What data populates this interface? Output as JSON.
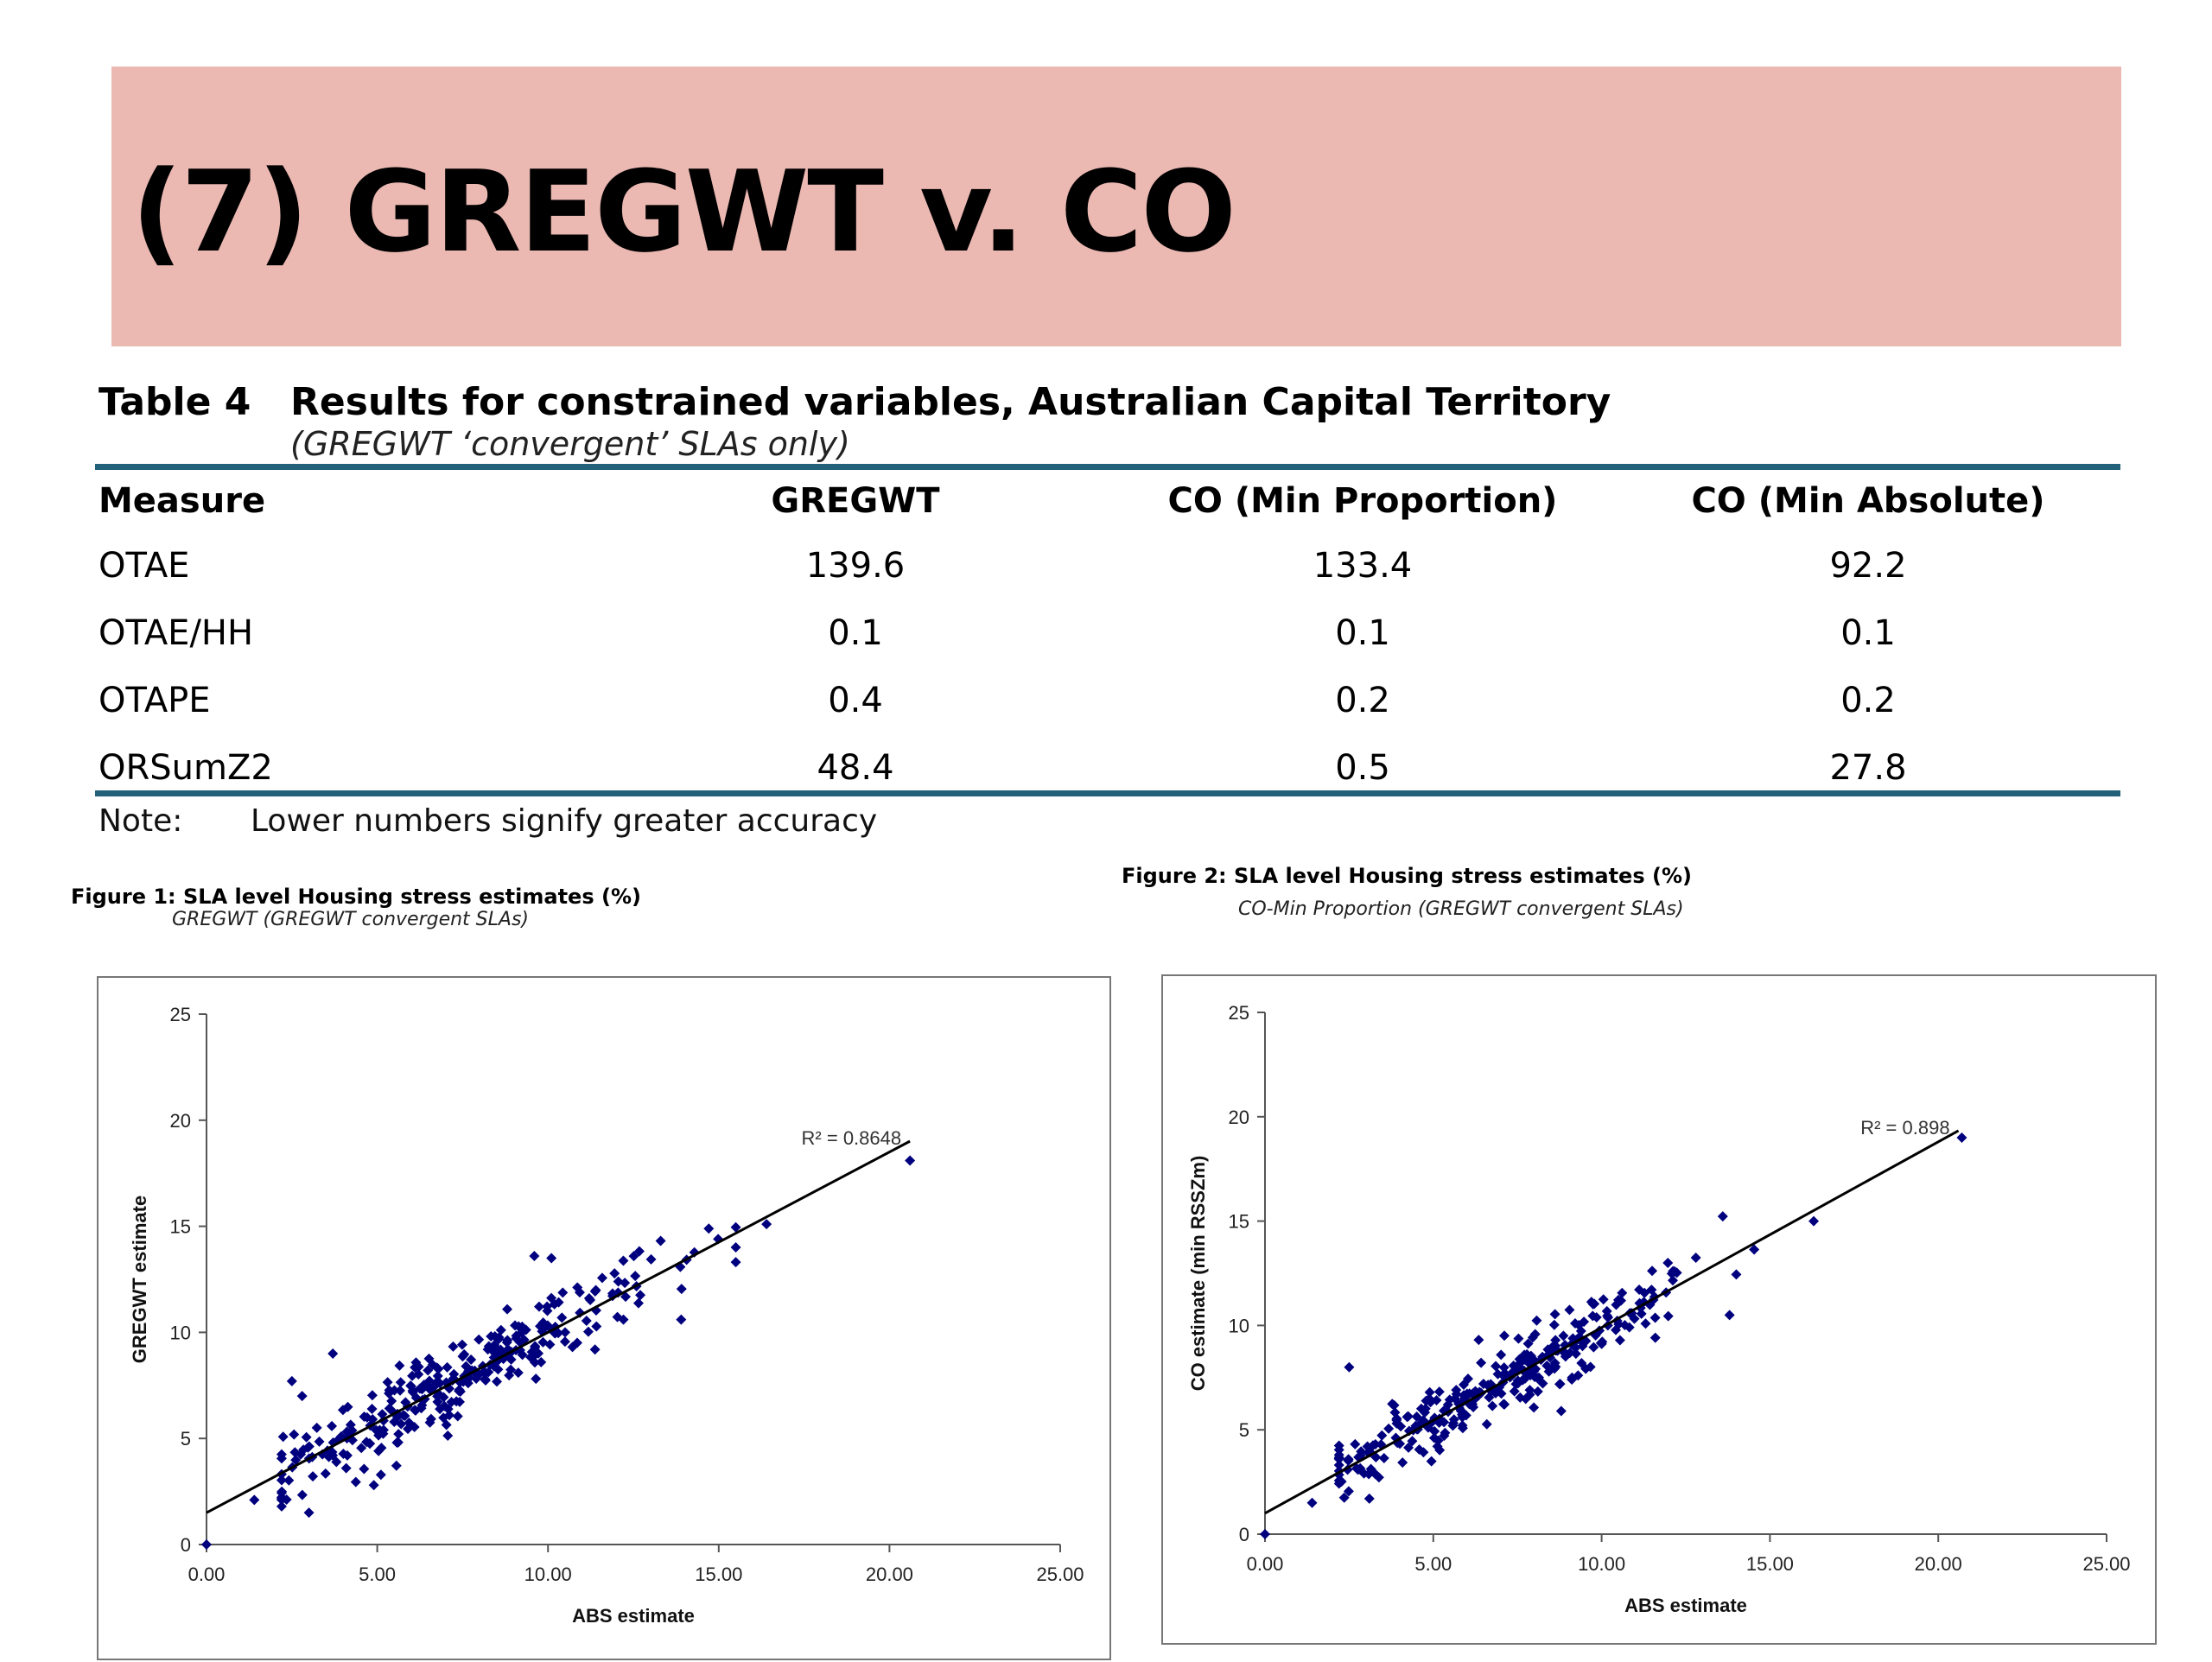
{
  "slide": {
    "title": "(7) GREGWT v. CO"
  },
  "table": {
    "number": "Table 4",
    "caption": "Results for constrained variables, Australian Capital Territory",
    "subcaption": "(GREGWT ‘convergent’ SLAs only)",
    "headers": [
      "Measure",
      "GREGWT",
      "CO (Min Proportion)",
      "CO (Min Absolute)"
    ],
    "rows": [
      [
        "OTAE",
        "139.6",
        "133.4",
        "92.2"
      ],
      [
        "OTAE/HH",
        "0.1",
        "0.1",
        "0.1"
      ],
      [
        "OTAPE",
        "0.4",
        "0.2",
        "0.2"
      ],
      [
        "ORSumZ2",
        "48.4",
        "0.5",
        "27.8"
      ]
    ],
    "note_label": "Note:",
    "note_text": "Lower numbers signify greater accuracy"
  },
  "colors": {
    "title_band": "#ebb8b2",
    "table_rule": "#23607a",
    "marker": "#00007f"
  },
  "chart_data": [
    {
      "type": "scatter",
      "title": "Figure 1: SLA level Housing stress estimates (%)",
      "subtitle": "GREGWT (GREGWT convergent SLAs)",
      "xlabel": "ABS estimate",
      "ylabel": "GREGWT estimate",
      "xlim": [
        0,
        25
      ],
      "ylim": [
        0,
        25
      ],
      "xticks": [
        "0.00",
        "5.00",
        "10.00",
        "15.00",
        "20.00",
        "25.00"
      ],
      "yticks": [
        "0",
        "5",
        "10",
        "15",
        "20",
        "25"
      ],
      "grid": false,
      "trendline": {
        "intercept": 1.5,
        "slope": 0.85,
        "x_range": [
          0,
          20.6
        ],
        "label": "R² = 0.8648"
      },
      "generator": {
        "n": 300,
        "seed": 7,
        "scatter_sd": 0.9
      },
      "points": [
        [
          0,
          0
        ],
        [
          1.4,
          2.1
        ],
        [
          2.5,
          7.7
        ],
        [
          2.8,
          7.0
        ],
        [
          3.7,
          9.0
        ],
        [
          3.0,
          1.5
        ],
        [
          13.9,
          10.6
        ],
        [
          16.4,
          15.1
        ],
        [
          20.6,
          18.1
        ],
        [
          9.6,
          13.6
        ],
        [
          10.1,
          13.5
        ],
        [
          4.9,
          2.8
        ]
      ]
    },
    {
      "type": "scatter",
      "title": "Figure 2: SLA level Housing stress estimates (%)",
      "subtitle": "CO-Min Proportion (GREGWT convergent SLAs)",
      "xlabel": "ABS estimate",
      "ylabel": "CO estimate (min RSSZm)",
      "xlim": [
        0,
        25
      ],
      "ylim": [
        0,
        25
      ],
      "xticks": [
        "0.00",
        "5.00",
        "10.00",
        "15.00",
        "20.00",
        "25.00"
      ],
      "yticks": [
        "0",
        "5",
        "10",
        "15",
        "20",
        "25"
      ],
      "grid": false,
      "trendline": {
        "intercept": 1.0,
        "slope": 0.89,
        "x_range": [
          0,
          20.6
        ],
        "label": "R² = 0.898"
      },
      "generator": {
        "n": 300,
        "seed": 13,
        "scatter_sd": 0.8
      },
      "points": [
        [
          0,
          0
        ],
        [
          1.4,
          1.5
        ],
        [
          2.5,
          8.0
        ],
        [
          3.1,
          1.7
        ],
        [
          13.8,
          10.5
        ],
        [
          16.3,
          15.0
        ],
        [
          20.7,
          19.0
        ],
        [
          8.8,
          5.9
        ]
      ]
    }
  ]
}
